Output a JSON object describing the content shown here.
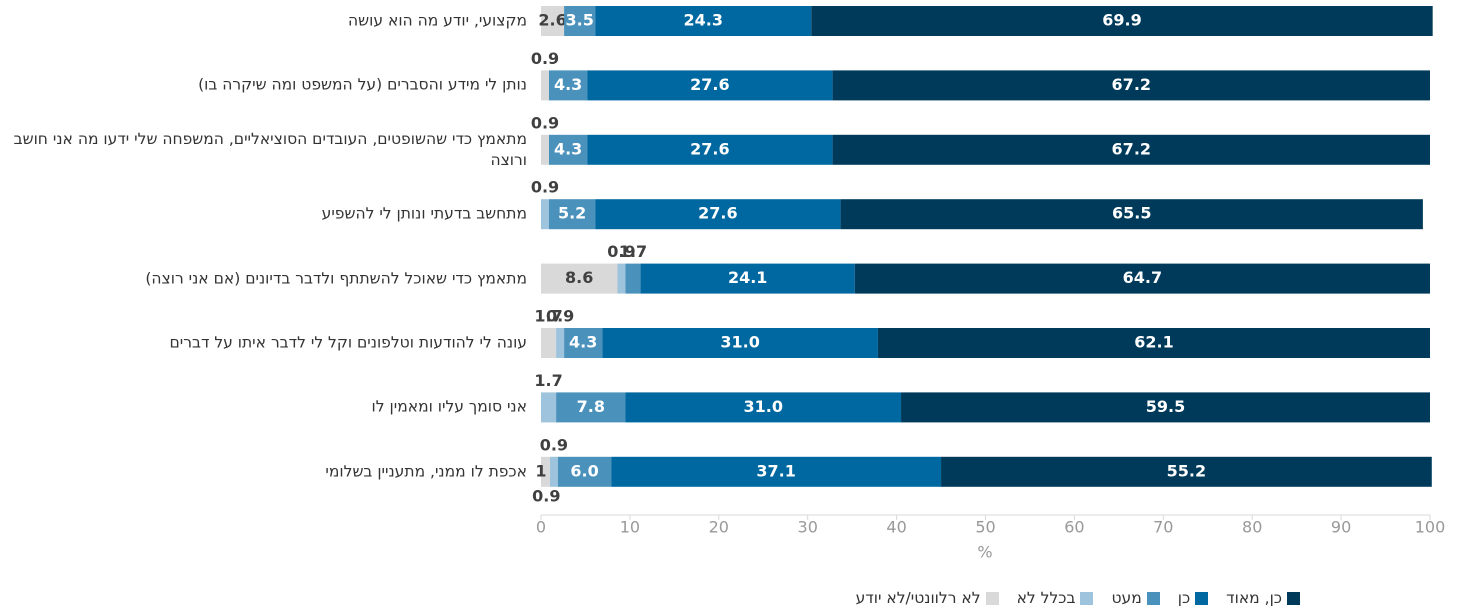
{
  "chart_data": {
    "type": "stacked-barh",
    "categories": [
      "מקצועי, יודע מה הוא עושה",
      "נותן לי מידע והסברים (על המשפט ומה שיקרה בו)",
      "מתאמץ כדי שהשופטים, העובדים הסוציאליים, המשפחה שלי ידעו מה אני חושב ורוצה",
      "מתחשב בדעתי ונותן לי להשפיע",
      "מתאמץ כדי שאוכל להשתתף ולדבר בדיונים (אם אני רוצה)",
      "עונה לי להודעות וטלפונים וקל לי לדבר איתו על דברים",
      "אני סומך עליו ומאמין לו",
      "אכפת לו ממני, מתעניין בשלומי"
    ],
    "series": [
      {
        "name": "לא רלוונטי/לא יודע",
        "color": "#d9d9d9",
        "values": [
          2.6,
          0.9,
          0.9,
          null,
          8.6,
          1.7,
          null,
          1
        ],
        "value_labels": [
          "2.6",
          "0.9",
          "0.9",
          null,
          "8.6",
          "1.7",
          null,
          "1"
        ]
      },
      {
        "name": "בכלל לא",
        "color": "#9dc3dd",
        "values": [
          null,
          null,
          null,
          0.9,
          0.9,
          0.9,
          1.7,
          0.9
        ],
        "value_labels": [
          null,
          null,
          null,
          "0.9",
          "0.9",
          "0.9",
          "1.7",
          "0.9"
        ]
      },
      {
        "name": "מעט",
        "color": "#4a91bb",
        "values": [
          3.5,
          4.3,
          4.3,
          5.2,
          1.7,
          4.3,
          7.8,
          6.0
        ],
        "value_labels": [
          "3.5",
          "4.3",
          "4.3",
          "5.2",
          "1.7",
          "4.3",
          "7.8",
          "6.0"
        ]
      },
      {
        "name": "כן",
        "color": "#0068a1",
        "values": [
          24.3,
          27.6,
          27.6,
          27.6,
          24.1,
          31.0,
          31.0,
          37.1
        ],
        "value_labels": [
          "24.3",
          "27.6",
          "27.6",
          "27.6",
          "24.1",
          "31.0",
          "31.0",
          "37.1"
        ]
      },
      {
        "name": "כן, מאוד",
        "color": "#003a5a",
        "values": [
          69.9,
          67.2,
          67.2,
          65.5,
          64.7,
          62.1,
          59.5,
          55.2
        ],
        "value_labels": [
          "69.9",
          "67.2",
          "67.2",
          "65.5",
          "64.7",
          "62.1",
          "59.5",
          "55.2"
        ]
      }
    ],
    "annotations": [
      "0.9"
    ],
    "xlabel": "%",
    "xlim": [
      0,
      100
    ],
    "xticks": [
      0,
      10,
      20,
      30,
      40,
      50,
      60,
      70,
      80,
      90,
      100
    ]
  }
}
